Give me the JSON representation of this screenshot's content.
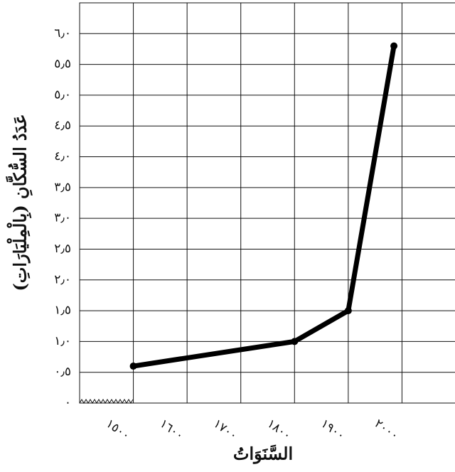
{
  "chart_data": {
    "type": "line",
    "x_label": "السَّنَوَاتُ",
    "y_label": "عَدَدُ السُّكَّانِ (بِالْمِلْيَارَاتِ)",
    "series": [
      {
        "color": "#000000",
        "x": [
          1500,
          1800,
          1900,
          1985
        ],
        "values": [
          0.6,
          1.0,
          1.5,
          5.8
        ]
      }
    ],
    "xlim": [
      1400,
      2100
    ],
    "xticks": [
      {
        "value": 1500,
        "label": "١٥٠٠"
      },
      {
        "value": 1600,
        "label": "١٦٠٠"
      },
      {
        "value": 1700,
        "label": "١٧٠٠"
      },
      {
        "value": 1800,
        "label": "١٨٠٠"
      },
      {
        "value": 1900,
        "label": "١٩٠٠"
      },
      {
        "value": 2000,
        "label": "٢٠٠٠"
      }
    ],
    "ylim": [
      0,
      6.5
    ],
    "yticks": [
      {
        "value": 0,
        "label": "٠"
      },
      {
        "value": 0.5,
        "label": "٠٫٥"
      },
      {
        "value": 1,
        "label": "١٫٠"
      },
      {
        "value": 1.5,
        "label": "١٫٥"
      },
      {
        "value": 2,
        "label": "٢٫٠"
      },
      {
        "value": 2.5,
        "label": "٢٫٥"
      },
      {
        "value": 3,
        "label": "٣٫٠"
      },
      {
        "value": 3.5,
        "label": "٣٫٥"
      },
      {
        "value": 4,
        "label": "٤٫٠"
      },
      {
        "value": 4.5,
        "label": "٤٫٥"
      },
      {
        "value": 5,
        "label": "٥٫٠"
      },
      {
        "value": 5.5,
        "label": "٥٫٥"
      },
      {
        "value": 6,
        "label": "٦٫٠"
      }
    ],
    "grid": true
  }
}
